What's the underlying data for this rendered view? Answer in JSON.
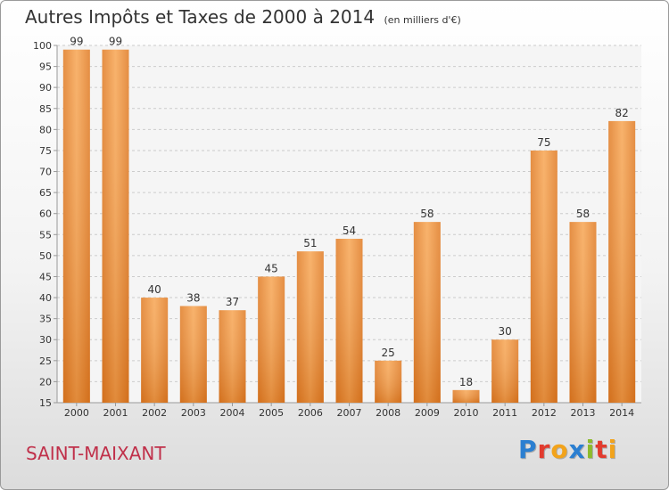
{
  "header": {
    "title": "Autres Impôts et Taxes de 2000 à 2014",
    "unit": "(en milliers d'€)"
  },
  "footer": {
    "city": "SAINT-MAIXANT",
    "brand_letters": [
      "P",
      "r",
      "o",
      "x",
      "i",
      "t",
      "i"
    ],
    "brand_colors": [
      "#2b7fd1",
      "#e23b2e",
      "#f2a31b",
      "#2b7fd1",
      "#8dbb2c",
      "#e23b2e",
      "#f2a31b"
    ]
  },
  "colors": {
    "bar": "#f0933a",
    "grid": "#cccccc",
    "text": "#333333",
    "city": "#c0304a"
  },
  "chart_data": {
    "type": "bar",
    "title": "Autres Impôts et Taxes de 2000 à 2014",
    "xlabel": "",
    "ylabel": "",
    "categories": [
      "2000",
      "2001",
      "2002",
      "2003",
      "2004",
      "2005",
      "2006",
      "2007",
      "2008",
      "2009",
      "2010",
      "2011",
      "2012",
      "2013",
      "2014"
    ],
    "values": [
      99,
      99,
      40,
      38,
      37,
      45,
      51,
      54,
      25,
      58,
      18,
      30,
      75,
      58,
      82
    ],
    "ylim": [
      15,
      100
    ],
    "yticks": [
      15,
      20,
      25,
      30,
      35,
      40,
      45,
      50,
      55,
      60,
      65,
      70,
      75,
      80,
      85,
      90,
      95,
      100
    ],
    "grid": true,
    "data_labels": true
  }
}
